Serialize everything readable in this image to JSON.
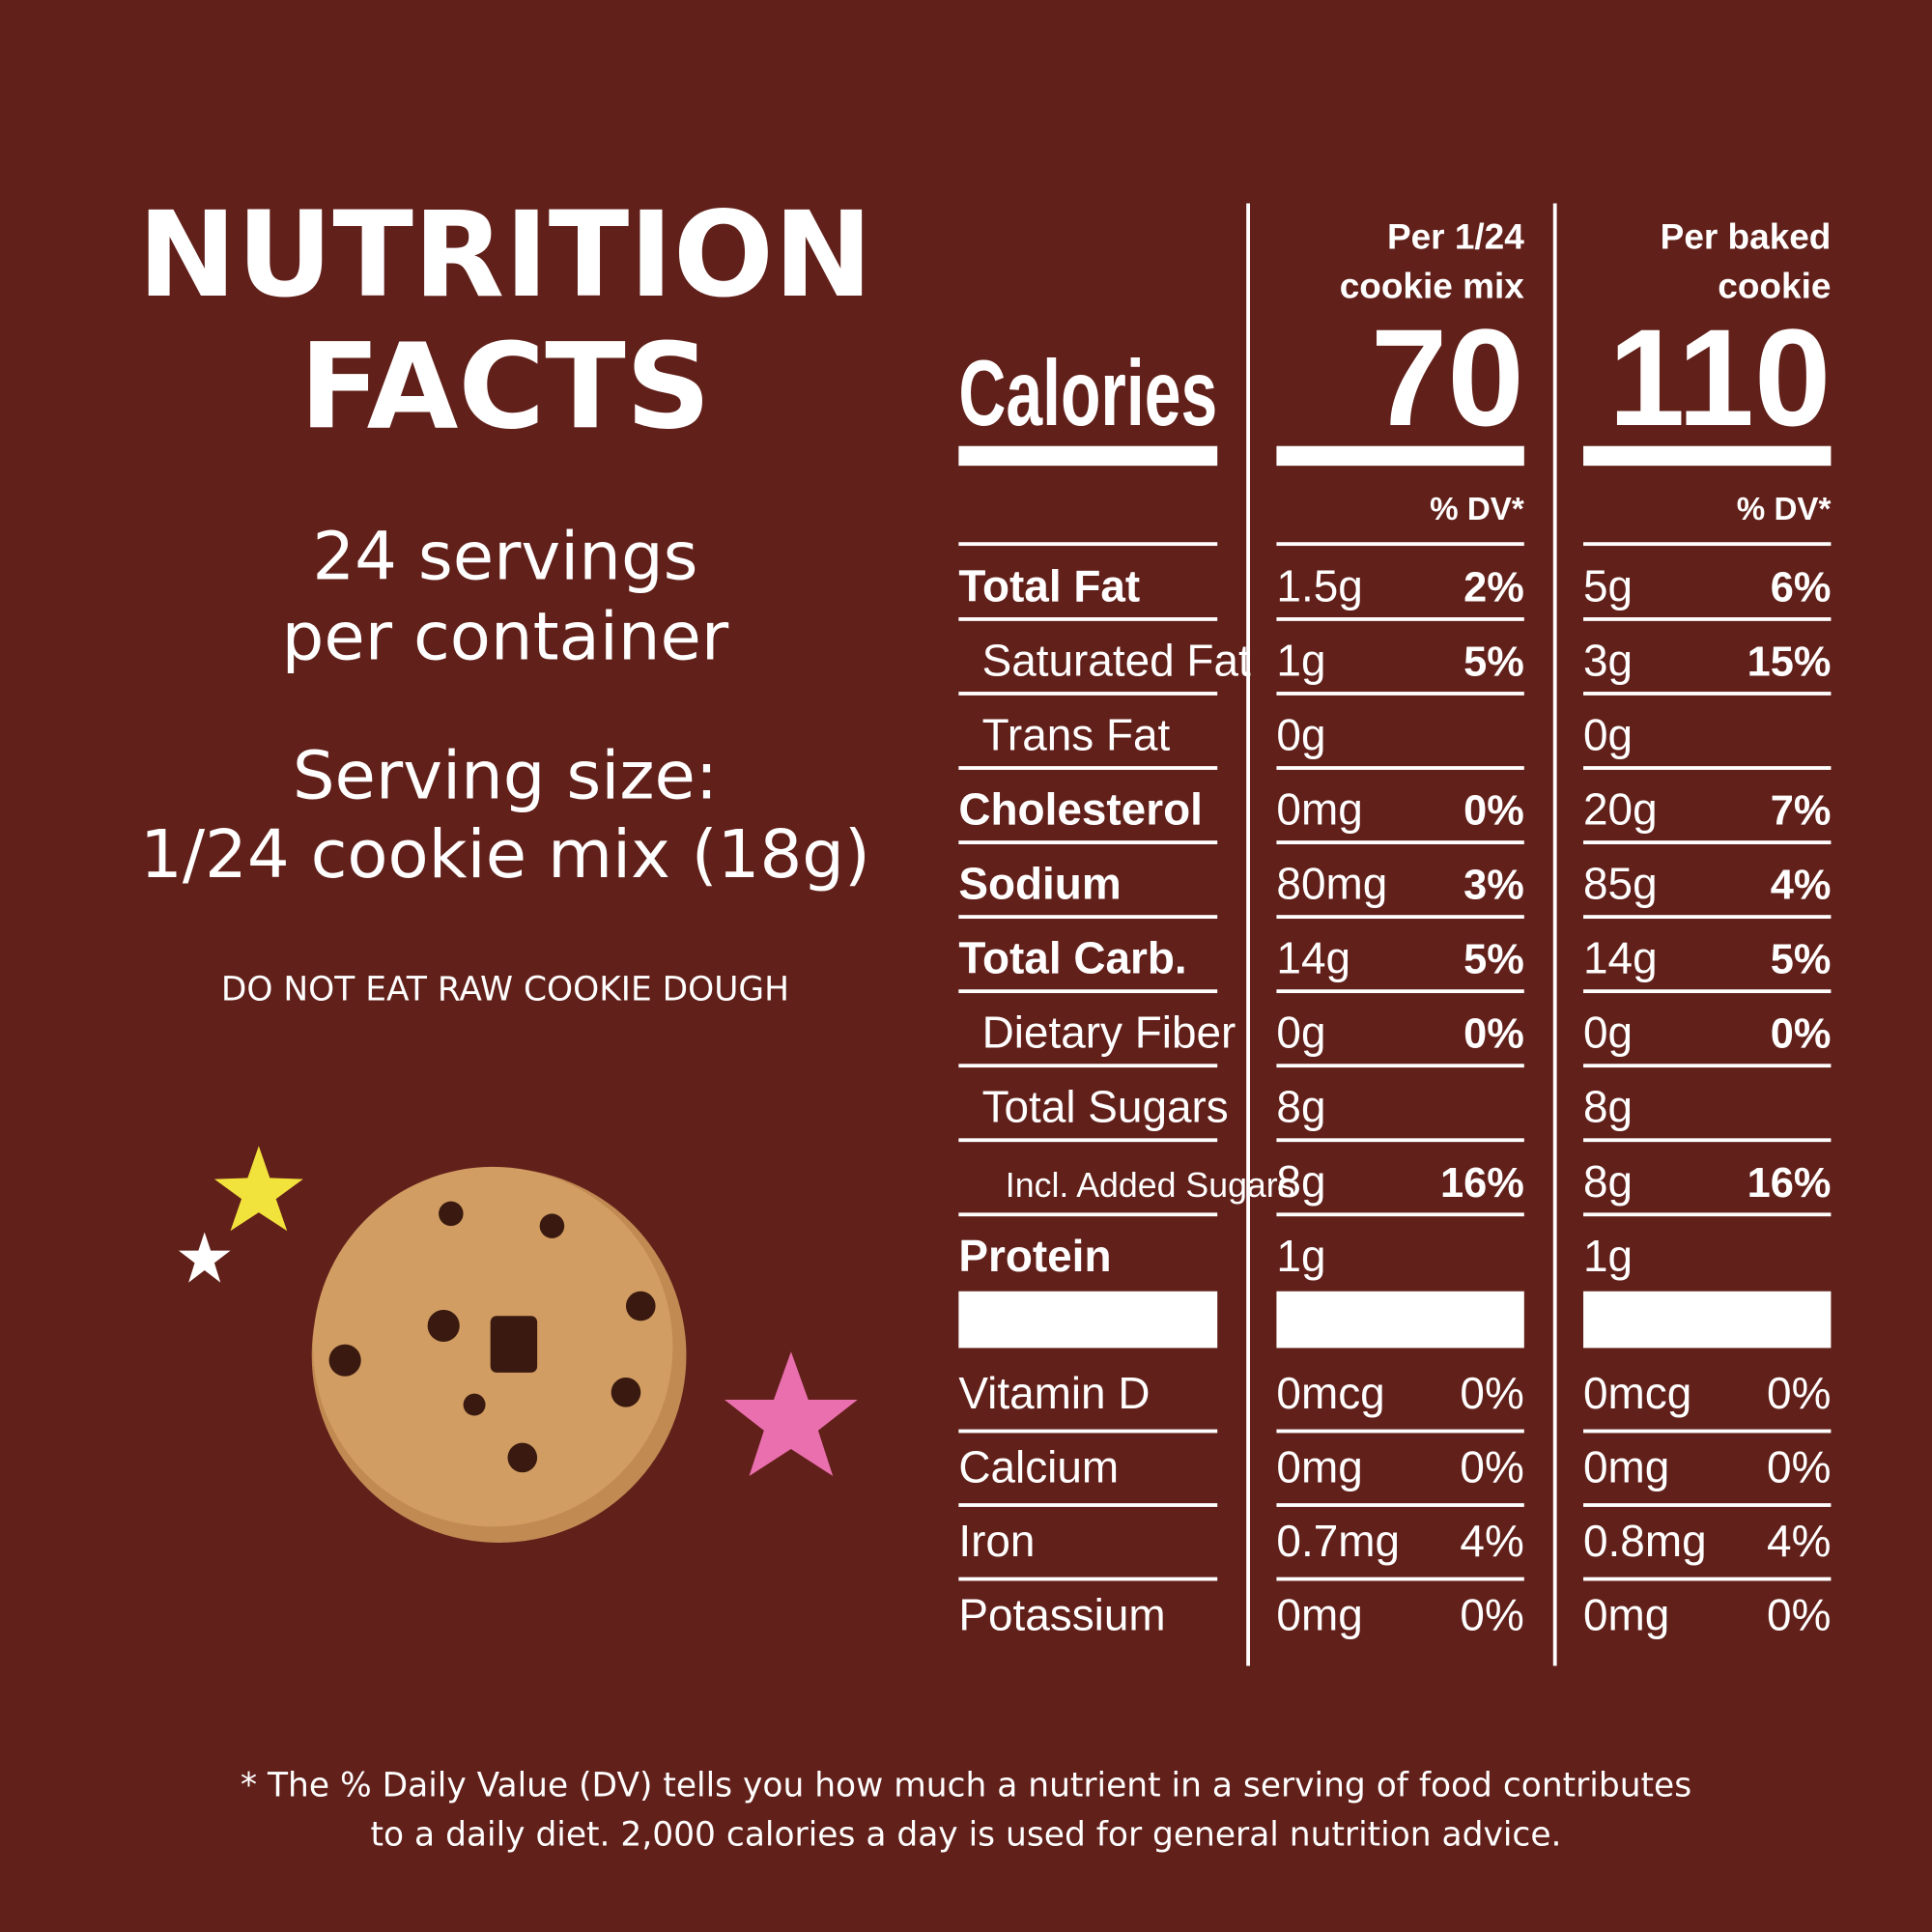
{
  "header": {
    "title_lines": [
      "NUTRITION",
      "FACTS"
    ]
  },
  "servings": [
    "24 servings",
    "per container"
  ],
  "serving_size": [
    "Serving size:",
    "1/24 cookie mix (18g)"
  ],
  "warning": "DO NOT EAT RAW COOKIE DOUGH",
  "table": {
    "calories_label": "Calories",
    "columns": [
      {
        "heading": [
          "Per 1/24",
          "cookie mix"
        ],
        "calories": "70",
        "dv_heading": "% DV*"
      },
      {
        "heading": [
          "Per baked",
          "cookie"
        ],
        "calories": "110",
        "dv_heading": "% DV*"
      }
    ],
    "rows": [
      {
        "label": "Total Fat",
        "bold": true,
        "indent": 0,
        "values": [
          [
            "1.5g",
            "2%"
          ],
          [
            "5g",
            "6%"
          ]
        ]
      },
      {
        "label": "Saturated Fat",
        "bold": false,
        "indent": 1,
        "values": [
          [
            "1g",
            "5%"
          ],
          [
            "3g",
            "15%"
          ]
        ]
      },
      {
        "label": "Trans Fat",
        "bold": false,
        "indent": 1,
        "values": [
          [
            "0g"
          ],
          [
            "0g"
          ]
        ]
      },
      {
        "label": "Cholesterol",
        "bold": true,
        "indent": 0,
        "values": [
          [
            "0mg",
            "0%"
          ],
          [
            "20g",
            "7%"
          ]
        ]
      },
      {
        "label": "Sodium",
        "bold": true,
        "indent": 0,
        "values": [
          [
            "80mg",
            "3%"
          ],
          [
            "85g",
            "4%"
          ]
        ]
      },
      {
        "label": "Total Carb.",
        "bold": true,
        "indent": 0,
        "values": [
          [
            "14g",
            "5%"
          ],
          [
            "14g",
            "5%"
          ]
        ]
      },
      {
        "label": "Dietary Fiber",
        "bold": false,
        "indent": 1,
        "values": [
          [
            "0g",
            "0%"
          ],
          [
            "0g",
            "0%"
          ]
        ]
      },
      {
        "label": "Total Sugars",
        "bold": false,
        "indent": 1,
        "values": [
          [
            "8g"
          ],
          [
            "8g"
          ]
        ]
      },
      {
        "label": "Incl. Added Sugars",
        "bold": false,
        "indent": 2,
        "values": [
          [
            "8g",
            "16%"
          ],
          [
            "8g",
            "16%"
          ]
        ]
      },
      {
        "label": "Protein",
        "bold": true,
        "indent": 0,
        "values": [
          [
            "1g"
          ],
          [
            "1g"
          ]
        ]
      }
    ],
    "vitamins": [
      {
        "label": "Vitamin D",
        "values": [
          [
            "0mcg",
            "0%"
          ],
          [
            "0mcg",
            "0%"
          ]
        ]
      },
      {
        "label": "Calcium",
        "values": [
          [
            "0mg",
            "0%"
          ],
          [
            "0mg",
            "0%"
          ]
        ]
      },
      {
        "label": "Iron",
        "values": [
          [
            "0.7mg",
            "4%"
          ],
          [
            "0.8mg",
            "4%"
          ]
        ]
      },
      {
        "label": "Potassium",
        "values": [
          [
            "0mg",
            "0%"
          ],
          [
            "0mg",
            "0%"
          ]
        ]
      }
    ]
  },
  "footnote": [
    "* The % Daily Value (DV) tells you how much a nutrient in a serving of food contributes",
    "to a daily diet. 2,000 calories a day is used for general nutrition advice."
  ]
}
